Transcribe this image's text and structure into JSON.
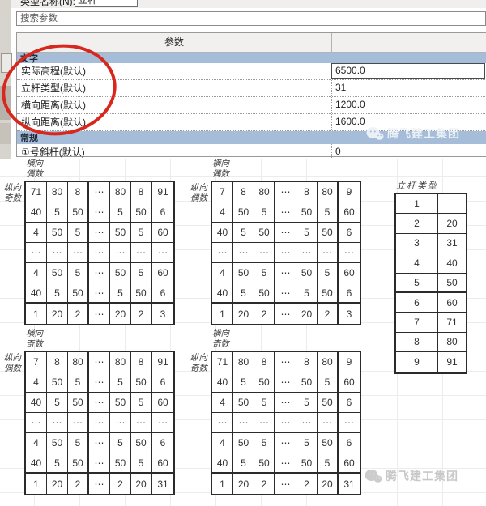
{
  "window": {
    "type_name_label": "类型名称(N):",
    "type_name_value": "立杆",
    "search_placeholder": "搜索参数",
    "param_column_header": "参数"
  },
  "colors": {
    "section_band_blue": "#a5bdd8",
    "annotation_red": "#d8271c",
    "watermark_gray": "#c8c8c8"
  },
  "parameters": {
    "sections": [
      {
        "title": "文字",
        "rows": [
          {
            "name": "实际高程(默认)",
            "value": "6500.0",
            "selected": true
          },
          {
            "name": "立杆类型(默认)",
            "value": "31"
          },
          {
            "name": "横向距离(默认)",
            "value": "1200.0"
          },
          {
            "name": "纵向距离(默认)",
            "value": "1600.0"
          }
        ]
      },
      {
        "title": "常规",
        "rows": [
          {
            "name": "①号斜杆(默认)",
            "value": "0"
          }
        ]
      }
    ]
  },
  "watermark": {
    "text": "腾飞建工集团",
    "icon": "wechat-icon"
  },
  "grids": [
    {
      "position": "top-left",
      "col_label": "横向偶数",
      "row_label": "纵向奇数",
      "rows": [
        [
          "71",
          "80",
          "8",
          "⋯",
          "80",
          "8",
          "91"
        ],
        [
          "40",
          "5",
          "50",
          "⋯",
          "5",
          "50",
          "6"
        ],
        [
          "4",
          "50",
          "5",
          "⋯",
          "50",
          "5",
          "60"
        ],
        [
          "⋯",
          "⋯",
          "⋯",
          "⋯",
          "⋯",
          "⋯",
          "⋯"
        ],
        [
          "4",
          "50",
          "5",
          "⋯",
          "50",
          "5",
          "60"
        ],
        [
          "40",
          "5",
          "50",
          "⋯",
          "5",
          "50",
          "6"
        ],
        [
          "1",
          "20",
          "2",
          "⋯",
          "20",
          "2",
          "3"
        ]
      ]
    },
    {
      "position": "top-right",
      "col_label": "横向偶数",
      "row_label": "纵向偶数",
      "rows": [
        [
          "7",
          "8",
          "80",
          "⋯",
          "8",
          "80",
          "9"
        ],
        [
          "4",
          "50",
          "5",
          "⋯",
          "50",
          "5",
          "60"
        ],
        [
          "40",
          "5",
          "50",
          "⋯",
          "5",
          "50",
          "6"
        ],
        [
          "⋯",
          "⋯",
          "⋯",
          "⋯",
          "⋯",
          "⋯",
          "⋯"
        ],
        [
          "4",
          "50",
          "5",
          "⋯",
          "50",
          "5",
          "60"
        ],
        [
          "40",
          "5",
          "50",
          "⋯",
          "5",
          "50",
          "6"
        ],
        [
          "1",
          "20",
          "2",
          "⋯",
          "20",
          "2",
          "3"
        ]
      ]
    },
    {
      "position": "bottom-left",
      "col_label": "横向奇数",
      "row_label": "纵向偶数",
      "rows": [
        [
          "7",
          "8",
          "80",
          "⋯",
          "80",
          "8",
          "91"
        ],
        [
          "4",
          "50",
          "5",
          "⋯",
          "5",
          "50",
          "6"
        ],
        [
          "40",
          "5",
          "50",
          "⋯",
          "50",
          "5",
          "60"
        ],
        [
          "⋯",
          "⋯",
          "⋯",
          "⋯",
          "⋯",
          "⋯",
          "⋯"
        ],
        [
          "4",
          "50",
          "5",
          "⋯",
          "5",
          "50",
          "6"
        ],
        [
          "40",
          "5",
          "50",
          "⋯",
          "50",
          "5",
          "60"
        ],
        [
          "1",
          "20",
          "2",
          "⋯",
          "2",
          "20",
          "31"
        ]
      ]
    },
    {
      "position": "bottom-right",
      "col_label": "横向奇数",
      "row_label": "纵向奇数",
      "rows": [
        [
          "71",
          "80",
          "8",
          "⋯",
          "8",
          "80",
          "9"
        ],
        [
          "40",
          "5",
          "50",
          "⋯",
          "50",
          "5",
          "60"
        ],
        [
          "4",
          "50",
          "5",
          "⋯",
          "5",
          "50",
          "6"
        ],
        [
          "⋯",
          "⋯",
          "⋯",
          "⋯",
          "⋯",
          "⋯",
          "⋯"
        ],
        [
          "4",
          "50",
          "5",
          "⋯",
          "5",
          "50",
          "6"
        ],
        [
          "40",
          "5",
          "50",
          "⋯",
          "50",
          "5",
          "60"
        ],
        [
          "1",
          "20",
          "2",
          "⋯",
          "2",
          "20",
          "31"
        ]
      ]
    }
  ],
  "pole_type_table": {
    "title": "立杆类型",
    "rows": [
      [
        "1",
        ""
      ],
      [
        "2",
        "20"
      ],
      [
        "3",
        "31"
      ],
      [
        "4",
        "40"
      ],
      [
        "5",
        "50"
      ],
      [
        "6",
        "60"
      ],
      [
        "7",
        "71"
      ],
      [
        "8",
        "80"
      ],
      [
        "9",
        "91"
      ]
    ]
  }
}
